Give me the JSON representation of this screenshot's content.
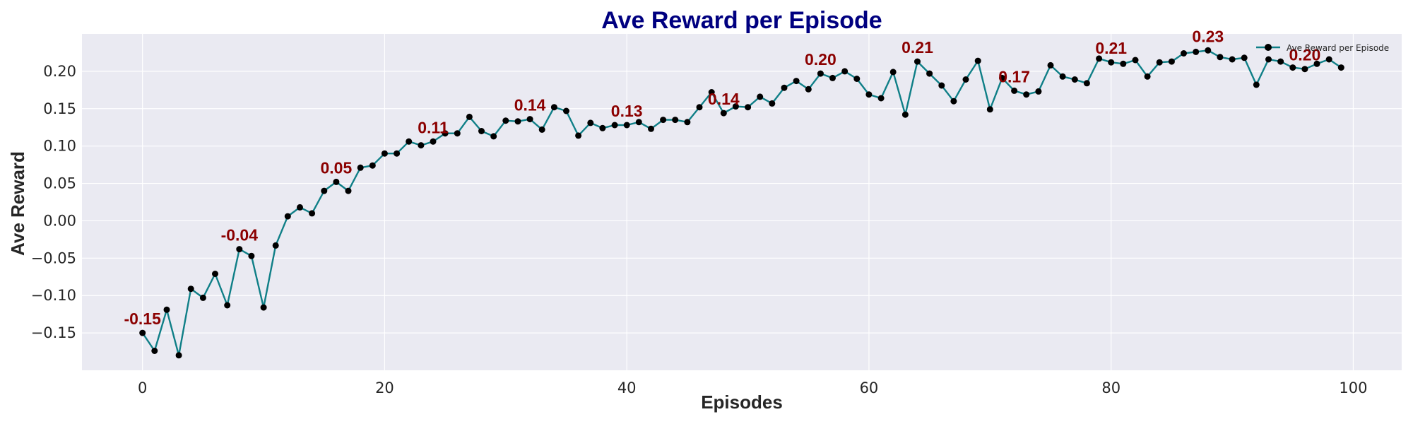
{
  "chart_data": {
    "type": "line",
    "title": "Ave Reward per Episode",
    "xlabel": "Episodes",
    "ylabel": "Ave Reward",
    "xlim": [
      -5,
      104
    ],
    "ylim": [
      -0.2,
      0.25
    ],
    "xticks": [
      0,
      20,
      40,
      60,
      80,
      100
    ],
    "yticks": [
      -0.15,
      -0.1,
      -0.05,
      0.0,
      0.05,
      0.1,
      0.15,
      0.2
    ],
    "ytick_labels": [
      "−0.15",
      "−0.10",
      "−0.05",
      "0.00",
      "0.05",
      "0.10",
      "0.15",
      "0.20"
    ],
    "grid": true,
    "legend_position": "top-right",
    "series": [
      {
        "name": "Ave Reward per Episode",
        "line_color": "#0f7f87",
        "marker_color": "#000000",
        "x": [
          0,
          1,
          2,
          3,
          4,
          5,
          6,
          7,
          8,
          9,
          10,
          11,
          12,
          13,
          14,
          15,
          16,
          17,
          18,
          19,
          20,
          21,
          22,
          23,
          24,
          25,
          26,
          27,
          28,
          29,
          30,
          31,
          32,
          33,
          34,
          35,
          36,
          37,
          38,
          39,
          40,
          41,
          42,
          43,
          44,
          45,
          46,
          47,
          48,
          49,
          50,
          51,
          52,
          53,
          54,
          55,
          56,
          57,
          58,
          59,
          60,
          61,
          62,
          63,
          64,
          65,
          66,
          67,
          68,
          69,
          70,
          71,
          72,
          73,
          74,
          75,
          76,
          77,
          78,
          79,
          80,
          81,
          82,
          83,
          84,
          85,
          86,
          87,
          88,
          89,
          90,
          91,
          92,
          93,
          94,
          95,
          96,
          97,
          98,
          99
        ],
        "y": [
          -0.15,
          -0.174,
          -0.119,
          -0.18,
          -0.091,
          -0.103,
          -0.071,
          -0.113,
          -0.038,
          -0.047,
          -0.116,
          -0.033,
          0.006,
          0.018,
          0.01,
          0.04,
          0.052,
          0.04,
          0.071,
          0.074,
          0.09,
          0.09,
          0.106,
          0.101,
          0.106,
          0.117,
          0.117,
          0.139,
          0.12,
          0.113,
          0.134,
          0.133,
          0.136,
          0.122,
          0.152,
          0.147,
          0.114,
          0.131,
          0.124,
          0.128,
          0.128,
          0.132,
          0.123,
          0.135,
          0.135,
          0.132,
          0.152,
          0.172,
          0.144,
          0.153,
          0.152,
          0.166,
          0.157,
          0.178,
          0.187,
          0.176,
          0.197,
          0.191,
          0.2,
          0.19,
          0.169,
          0.164,
          0.199,
          0.142,
          0.213,
          0.197,
          0.181,
          0.16,
          0.189,
          0.214,
          0.149,
          0.191,
          0.174,
          0.169,
          0.173,
          0.208,
          0.193,
          0.189,
          0.184,
          0.217,
          0.212,
          0.21,
          0.215,
          0.193,
          0.212,
          0.213,
          0.224,
          0.226,
          0.228,
          0.219,
          0.216,
          0.218,
          0.182,
          0.216,
          0.213,
          0.205,
          0.203,
          0.21,
          0.216,
          0.205
        ]
      }
    ],
    "annotations": [
      {
        "x": 0,
        "y": -0.15,
        "text": "-0.15"
      },
      {
        "x": 8,
        "y": -0.038,
        "text": "-0.04"
      },
      {
        "x": 16,
        "y": 0.052,
        "text": "0.05"
      },
      {
        "x": 24,
        "y": 0.106,
        "text": "0.11"
      },
      {
        "x": 32,
        "y": 0.136,
        "text": "0.14"
      },
      {
        "x": 40,
        "y": 0.128,
        "text": "0.13"
      },
      {
        "x": 48,
        "y": 0.144,
        "text": "0.14"
      },
      {
        "x": 56,
        "y": 0.197,
        "text": "0.20"
      },
      {
        "x": 64,
        "y": 0.213,
        "text": "0.21"
      },
      {
        "x": 72,
        "y": 0.174,
        "text": "0.17"
      },
      {
        "x": 80,
        "y": 0.212,
        "text": "0.21"
      },
      {
        "x": 88,
        "y": 0.228,
        "text": "0.23"
      },
      {
        "x": 96,
        "y": 0.203,
        "text": "0.20"
      }
    ],
    "colors": {
      "plot_background": "#eaeaf2",
      "grid": "#ffffff",
      "title": "#000080",
      "annotation": "#8b0000"
    }
  }
}
